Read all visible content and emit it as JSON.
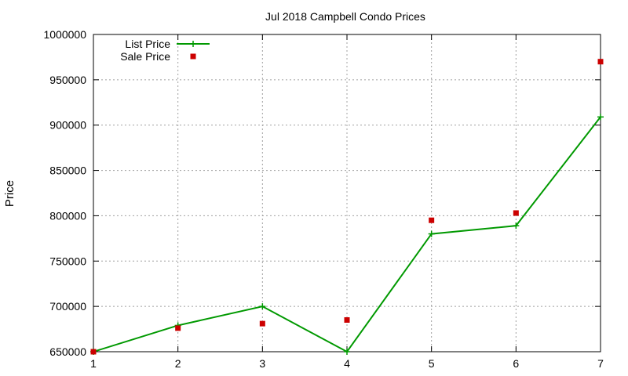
{
  "chart_data": {
    "type": "line",
    "title": "Jul 2018 Campbell Condo Prices",
    "ylabel": "Price",
    "xlabel": "",
    "xlim": [
      1,
      7
    ],
    "ylim": [
      650000,
      1000000
    ],
    "x_ticks": [
      1,
      2,
      3,
      4,
      5,
      6,
      7
    ],
    "y_ticks": [
      650000,
      700000,
      750000,
      800000,
      850000,
      900000,
      950000,
      1000000
    ],
    "grid": true,
    "legend_position": "top-left",
    "series": [
      {
        "name": "List Price",
        "style": "linespoints",
        "marker": "plus",
        "color": "#009900",
        "x": [
          1,
          2,
          3,
          4,
          5,
          6,
          7
        ],
        "values": [
          650000,
          679000,
          700000,
          650000,
          780000,
          789000,
          909000
        ]
      },
      {
        "name": "Sale Price",
        "style": "points",
        "marker": "square",
        "color": "#cc0000",
        "x": [
          1,
          2,
          3,
          4,
          5,
          6,
          7
        ],
        "values": [
          650000,
          676000,
          681000,
          685000,
          795000,
          803000,
          970000
        ]
      }
    ]
  }
}
